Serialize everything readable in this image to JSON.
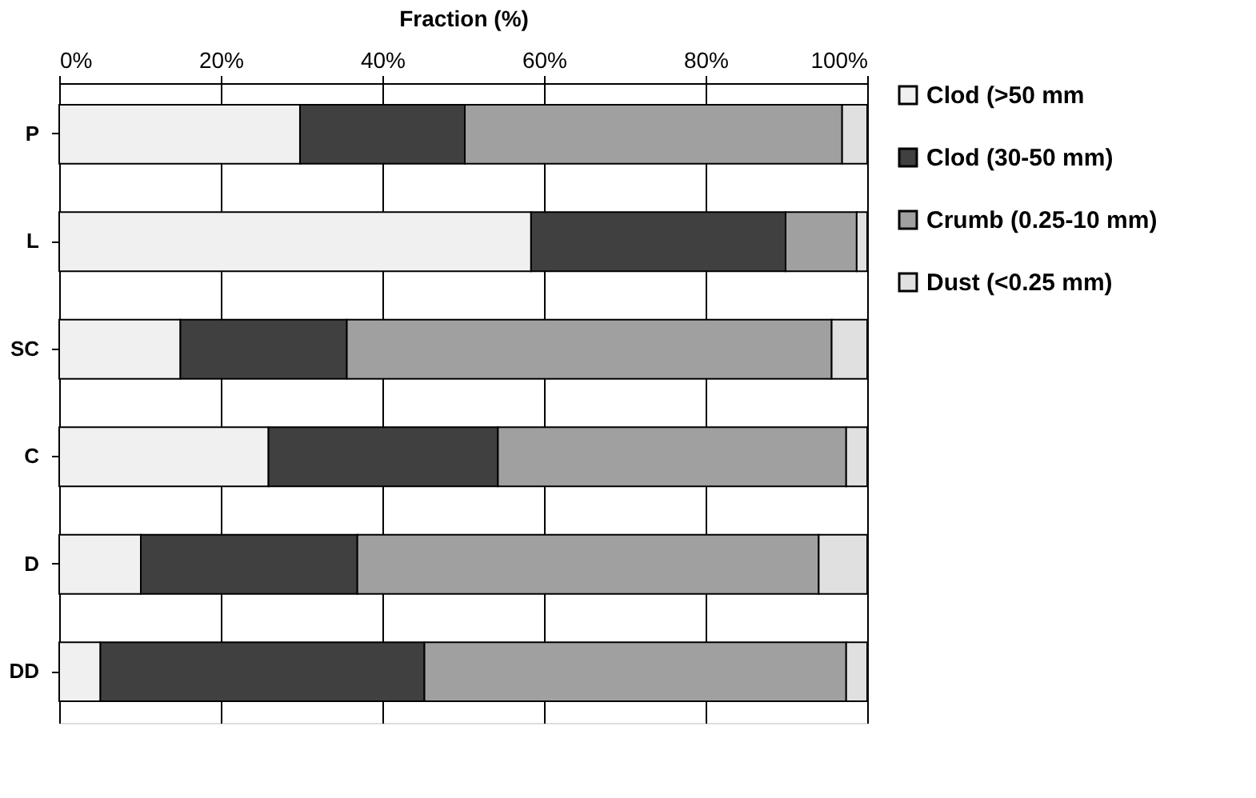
{
  "chart_data": {
    "type": "bar",
    "orientation": "horizontal",
    "stacked": true,
    "xlabel": "Fraction (%)",
    "categories": [
      "P",
      "L",
      "SC",
      "C",
      "D",
      "DD"
    ],
    "series": [
      {
        "name": "Clod (>50 mm",
        "color": "#f0f0f0",
        "values": [
          29.8,
          58.4,
          15.0,
          25.9,
          10.1,
          5.1
        ]
      },
      {
        "name": "Clod (30-50 mm)",
        "color": "#404040",
        "values": [
          20.4,
          31.5,
          20.6,
          28.4,
          26.8,
          40.1
        ]
      },
      {
        "name": "Crumb (0.25-10 mm)",
        "color": "#a0a0a0",
        "values": [
          46.7,
          8.8,
          60.0,
          43.1,
          57.1,
          52.2
        ]
      },
      {
        "name": "Dust (<0.25 mm)",
        "color": "#e0e0e0",
        "values": [
          3.1,
          1.3,
          4.4,
          2.6,
          6.0,
          2.6
        ]
      }
    ],
    "xlim": [
      0,
      100
    ],
    "xticks": [
      {
        "value": 0,
        "label": "0%"
      },
      {
        "value": 20,
        "label": "20%"
      },
      {
        "value": 40,
        "label": "40%"
      },
      {
        "value": 60,
        "label": "60%"
      },
      {
        "value": 80,
        "label": "80%"
      },
      {
        "value": 100,
        "label": "100%"
      }
    ],
    "grid": "x",
    "legend": "right"
  }
}
